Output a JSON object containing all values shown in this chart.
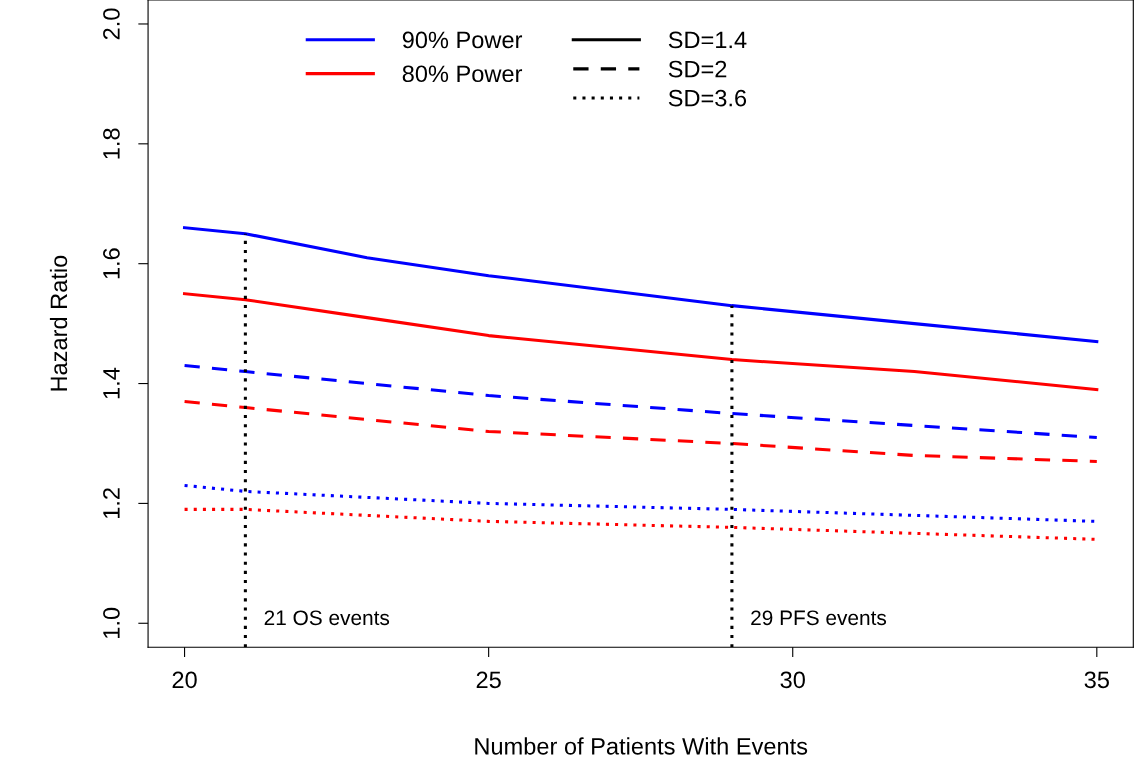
{
  "chart_data": {
    "type": "line",
    "xlabel": "Number of Patients With Events",
    "ylabel": "Hazard Ratio",
    "x": [
      20,
      21,
      23,
      25,
      29,
      32,
      35
    ],
    "xlim": [
      19.4,
      35.6
    ],
    "xticks": [
      20,
      25,
      30,
      35
    ],
    "ylim": [
      0.96,
      2.04
    ],
    "yticks": [
      {
        "value": 1.0,
        "label": "1.0"
      },
      {
        "value": 1.2,
        "label": "1.2"
      },
      {
        "value": 1.4,
        "label": "1.4"
      },
      {
        "value": 1.6,
        "label": "1.6"
      },
      {
        "value": 1.8,
        "label": "1.8"
      },
      {
        "value": 2.0,
        "label": "2.0"
      }
    ],
    "grid": false,
    "legend": "top",
    "marker": "none",
    "series": [
      {
        "name": "90% Power",
        "color": "#0000ff",
        "line_style": "solid",
        "values": [
          1.66,
          1.65,
          1.61,
          1.58,
          1.53,
          1.5,
          1.47
        ]
      },
      {
        "name": "80% Power",
        "color": "#ff0000",
        "line_style": "solid",
        "values": [
          1.55,
          1.54,
          1.51,
          1.48,
          1.44,
          1.42,
          1.39
        ]
      },
      {
        "color": "#0000ff",
        "line_style": "dashed",
        "values": [
          1.43,
          1.42,
          1.4,
          1.38,
          1.35,
          1.33,
          1.31
        ]
      },
      {
        "color": "#ff0000",
        "line_style": "dashed",
        "values": [
          1.37,
          1.36,
          1.34,
          1.32,
          1.3,
          1.28,
          1.27
        ]
      },
      {
        "color": "#0000ff",
        "line_style": "dotted",
        "values": [
          1.23,
          1.22,
          1.21,
          1.2,
          1.19,
          1.18,
          1.17
        ]
      },
      {
        "color": "#ff0000",
        "line_style": "dotted",
        "values": [
          1.19,
          1.19,
          1.18,
          1.17,
          1.16,
          1.15,
          1.14
        ]
      },
      {
        "name": "SD=1.4",
        "color": "#000000",
        "line_style": "solid",
        "values": [
          null,
          null,
          null,
          null,
          null,
          null,
          null
        ]
      },
      {
        "name": "SD=2",
        "color": "#000000",
        "line_style": "dashed",
        "values": [
          null,
          null,
          null,
          null,
          null,
          null,
          null
        ]
      },
      {
        "name": "SD=3.6",
        "color": "#000000",
        "line_style": "dotted",
        "values": [
          null,
          null,
          null,
          null,
          null,
          null,
          null
        ]
      }
    ],
    "ref_lines": [
      {
        "axis": "x",
        "value": 21,
        "label": "21 OS events",
        "color": "#000000",
        "line_style": "dotted"
      },
      {
        "axis": "x",
        "value": 29,
        "label": "29 PFS events",
        "color": "#000000",
        "line_style": "dotted"
      }
    ]
  }
}
